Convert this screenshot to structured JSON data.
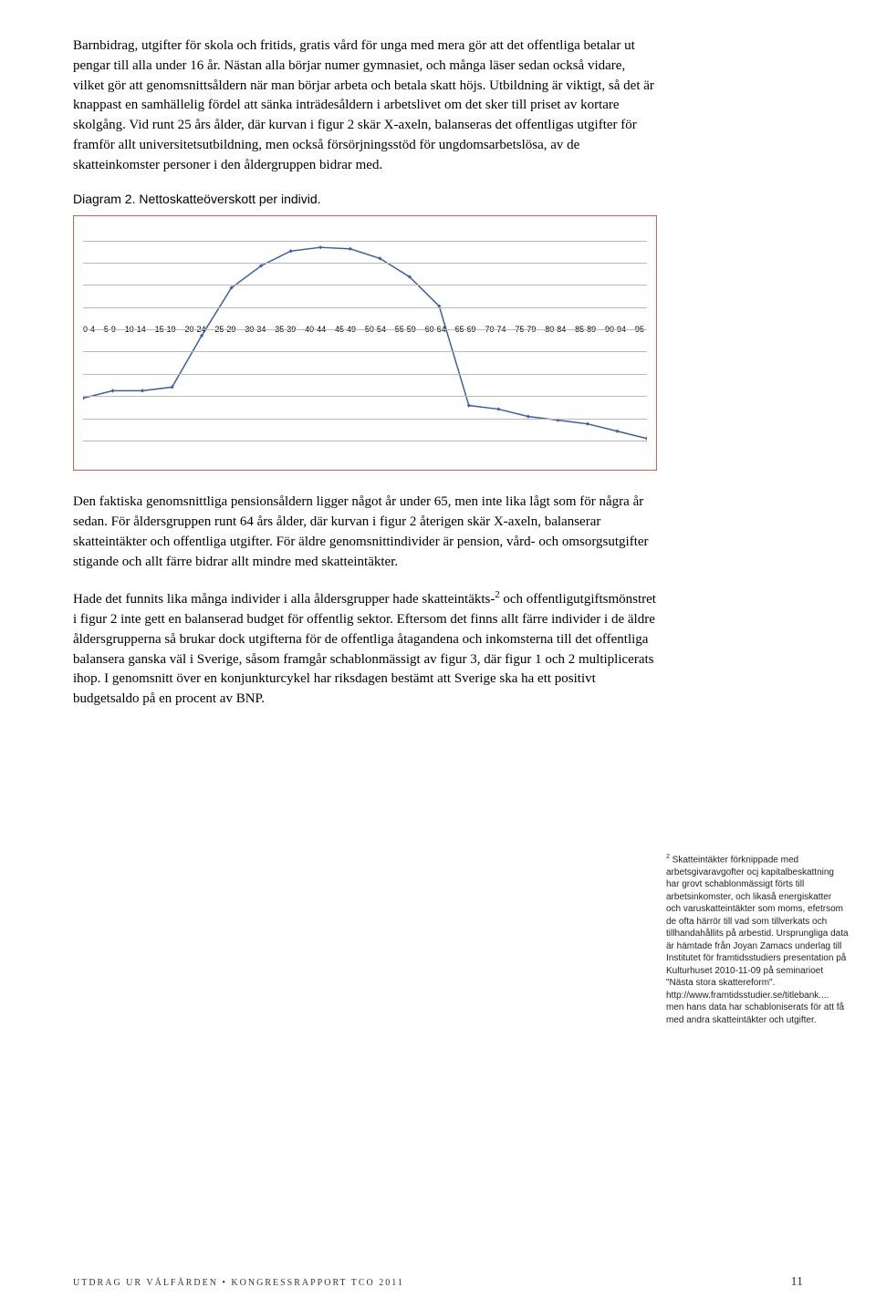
{
  "paragraphs": {
    "p1": "Barnbidrag, utgifter för skola och fritids, gratis vård för unga med mera gör att det offentliga betalar ut pengar till alla under 16 år. Nästan alla börjar numer gymnasiet, och många läser sedan också vidare, vilket gör att genomsnittsåldern när man börjar arbeta och betala skatt höjs. Utbildning är viktigt, så det är knappast en samhällelig fördel att sänka inträdesåldern i arbetslivet om det sker till priset av kortare skolgång. Vid runt 25 års ålder, där kurvan i figur 2 skär X-axeln, balanseras det offentligas utgifter för framför allt universitetsutbildning, men också försörjningsstöd för ungdomsarbetslösa, av de skatteinkomster personer i den åldergruppen bidrar med.",
    "p2": "Den faktiska genomsnittliga pensionsåldern ligger något år under 65, men inte lika lågt som för några år sedan. För åldersgruppen runt 64 års ålder, där kurvan i figur 2 återigen skär X-axeln, balanserar skatteintäkter och offentliga utgifter. För äldre genomsnittindivider är pension, vård- och omsorgsutgifter stigande och allt färre bidrar allt mindre med skatteintäkter.",
    "p3a": "Hade det funnits lika många individer i alla åldersgrupper hade skatteintäkts-",
    "p3b": " och offentligutgiftsmönstret i figur 2 inte gett en balanserad budget för offentlig sektor. Eftersom det finns allt färre individer i de äldre åldersgrupperna så brukar dock utgifterna för de offentliga åtagandena och inkomsterna till det offentliga balansera ganska väl i Sverige, såsom framgår schablonmässigt av figur 3, där figur 1 och 2 multiplicerats ihop. I genomsnitt över en konjunkturcykel har riksdagen bestämt att Sverige ska ha ett positivt budgetsaldo på en procent av BNP.",
    "sup2": "2"
  },
  "chart": {
    "title": "Diagram 2. Nettoskatteöverskott per individ.",
    "type": "line",
    "border_color": "#d1664a",
    "grid_color": "#b9b9b9",
    "line_color": "#3b5fa6",
    "marker_color": "#3b5fa6",
    "line_width": 1.5,
    "marker_size": 3,
    "categories": [
      "0-4",
      "5-9",
      "10-14",
      "15-19",
      "20-24",
      "25-29",
      "30-34",
      "35-39",
      "40-44",
      "45-49",
      "50-54",
      "55-59",
      "60-64",
      "65-69",
      "70-74",
      "75-79",
      "80-84",
      "85-89",
      "90-94",
      "95-"
    ],
    "values": [
      -95,
      -85,
      -85,
      -80,
      -10,
      55,
      85,
      105,
      110,
      108,
      95,
      70,
      30,
      -105,
      -110,
      -120,
      -125,
      -130,
      -140,
      -150
    ],
    "y_min": -180,
    "y_max": 140,
    "gridlines": [
      120,
      90,
      60,
      30,
      0,
      -30,
      -60,
      -90,
      -120,
      -150
    ]
  },
  "sidenote": {
    "sup": "2",
    "text": " Skatteintäkter förknippade med arbetsgivaravgofter ocj kapitalbeskattning har grovt schablonmässigt förts till arbetsinkomster, och likaså energiskatter och varuskatteintäkter som moms, efetrsom de ofta härrör till vad som tillverkats och tillhandahållits på arbestid. Ursprungliga data är hämtade från Joyan Zamacs underlag till Institutet för framtidsstudiers presentation på Kulturhuset 2010-11-09 på seminarioet \"Nästa stora skattereform\". http://www.framtidsstudier.se/titlebank.... men hans data har schabloniserats för att få med andra skatteintäkter och utgifter."
  },
  "footer": {
    "left": "UTDRAG UR VÄLFÄRDEN • KONGRESSRAPPORT TCO 2011",
    "page": "11"
  }
}
